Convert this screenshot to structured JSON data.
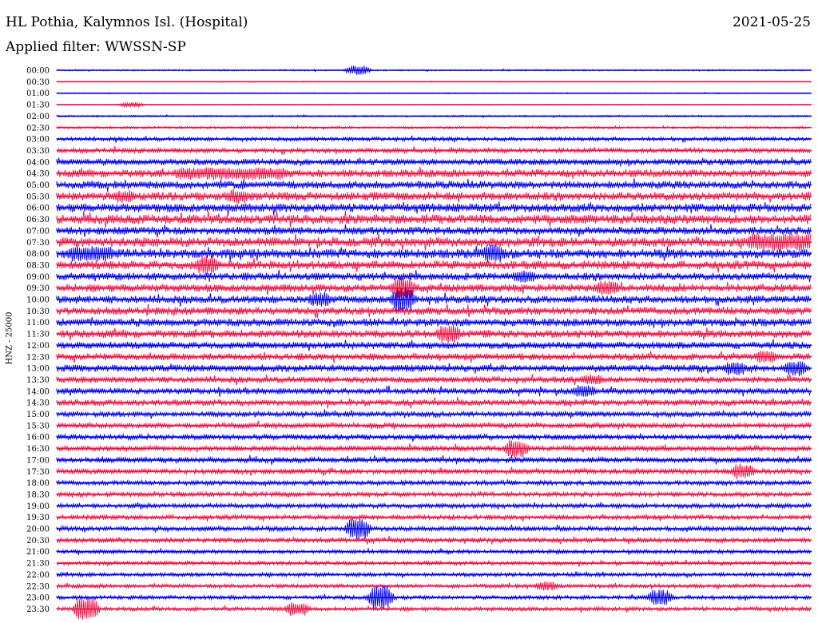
{
  "header": {
    "station": "HL Pothia, Kalymnos Isl. (Hospital)",
    "date": "2021-05-25",
    "filter": "Applied filter: WWSSN-SP"
  },
  "chart_data": {
    "type": "line",
    "chart_kind": "helicorder seismogram",
    "ylabel": "HNZ - 25000",
    "row_labels": [
      "00:00",
      "00:30",
      "01:00",
      "01:30",
      "02:00",
      "02:30",
      "03:00",
      "03:30",
      "04:00",
      "04:30",
      "05:00",
      "05:30",
      "06:00",
      "06:30",
      "07:00",
      "07:30",
      "08:00",
      "08:30",
      "09:00",
      "09:30",
      "10:00",
      "10:30",
      "11:00",
      "11:30",
      "12:00",
      "12:30",
      "13:00",
      "13:30",
      "14:00",
      "14:30",
      "15:00",
      "15:30",
      "16:00",
      "16:30",
      "17:00",
      "17:30",
      "18:00",
      "18:30",
      "19:00",
      "19:30",
      "20:00",
      "20:30",
      "21:00",
      "21:30",
      "22:00",
      "22:30",
      "23:00",
      "23:30"
    ],
    "row_interval_minutes": 30,
    "trace_colors": [
      "#0000ee",
      "#ee1144"
    ],
    "row_noise_level": [
      1,
      0.5,
      0.6,
      0.6,
      1,
      1.5,
      2.5,
      3,
      4,
      5,
      5,
      5.5,
      5.5,
      6,
      5,
      6,
      6,
      5.5,
      5,
      5,
      5,
      5,
      5,
      5,
      4.5,
      4.5,
      4.5,
      4,
      4,
      4,
      3.5,
      3.5,
      3.5,
      3.5,
      3.5,
      3.5,
      3,
      3,
      3,
      3,
      3,
      3,
      2.5,
      2.5,
      2.5,
      2.5,
      2.5,
      2.5
    ],
    "events": [
      {
        "row": "00:00",
        "at": 0.39,
        "amp": 6
      },
      {
        "row": "01:30",
        "at": 0.09,
        "amp": 3
      },
      {
        "row": "04:30",
        "at": 0.16,
        "amp": 8,
        "duration": 0.14
      },
      {
        "row": "05:30",
        "at": 0.08,
        "amp": 8
      },
      {
        "row": "05:30",
        "at": 0.23,
        "amp": 9
      },
      {
        "row": "07:30",
        "at": 0.92,
        "amp": 11,
        "duration": 0.1
      },
      {
        "row": "08:00",
        "at": 0.02,
        "amp": 10,
        "duration": 0.05
      },
      {
        "row": "08:00",
        "at": 0.57,
        "amp": 12
      },
      {
        "row": "08:30",
        "at": 0.19,
        "amp": 12
      },
      {
        "row": "09:00",
        "at": 0.61,
        "amp": 9
      },
      {
        "row": "09:30",
        "at": 0.45,
        "amp": 15
      },
      {
        "row": "09:30",
        "at": 0.72,
        "amp": 9
      },
      {
        "row": "10:00",
        "at": 0.34,
        "amp": 10
      },
      {
        "row": "10:00",
        "at": 0.45,
        "amp": 16
      },
      {
        "row": "11:30",
        "at": 0.51,
        "amp": 12
      },
      {
        "row": "12:30",
        "at": 0.93,
        "amp": 8
      },
      {
        "row": "13:00",
        "at": 0.89,
        "amp": 9
      },
      {
        "row": "13:00",
        "at": 0.97,
        "amp": 10
      },
      {
        "row": "13:30",
        "at": 0.7,
        "amp": 7
      },
      {
        "row": "14:00",
        "at": 0.69,
        "amp": 8
      },
      {
        "row": "16:30",
        "at": 0.6,
        "amp": 12
      },
      {
        "row": "17:30",
        "at": 0.9,
        "amp": 10
      },
      {
        "row": "20:00",
        "at": 0.39,
        "amp": 14
      },
      {
        "row": "22:30",
        "at": 0.64,
        "amp": 6
      },
      {
        "row": "23:00",
        "at": 0.42,
        "amp": 16
      },
      {
        "row": "23:00",
        "at": 0.79,
        "amp": 10
      },
      {
        "row": "23:30",
        "at": 0.03,
        "amp": 16
      },
      {
        "row": "23:30",
        "at": 0.31,
        "amp": 9
      }
    ]
  }
}
